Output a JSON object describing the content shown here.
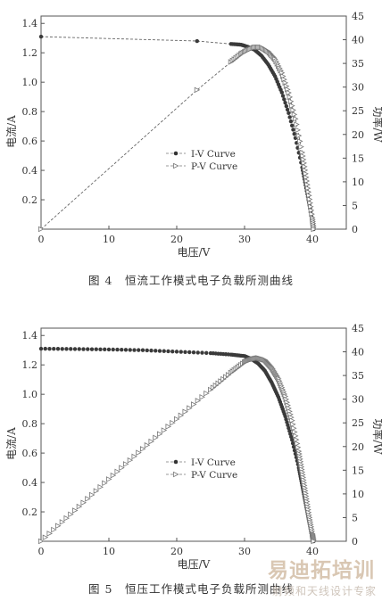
{
  "chart_data": [
    {
      "type": "line",
      "title": "",
      "xlabel": "电压/V",
      "ylabel": "电流/A",
      "ylabel_right": "功率/W",
      "xlim": [
        0,
        45
      ],
      "ylim": [
        0,
        1.45
      ],
      "ylim_right": [
        0,
        45
      ],
      "xticks": [
        0,
        10,
        20,
        30,
        40
      ],
      "yticks": [
        0.2,
        0.4,
        0.6,
        0.8,
        1.0,
        1.2,
        1.4
      ],
      "yticks_right": [
        0,
        5,
        10,
        15,
        20,
        25,
        30,
        35,
        40,
        45
      ],
      "legend": [
        "I-V Curve",
        "P-V Curve"
      ],
      "legend_position": "center-right",
      "grid": false,
      "series": [
        {
          "name": "I-V Curve",
          "axis": "left",
          "marker": "filled-dot",
          "line": "dashed",
          "x": [
            0,
            23,
            28,
            29.5,
            30.5,
            31.5,
            32.5,
            33.5,
            34.5,
            35.5,
            36.5,
            37.5,
            38.5,
            39,
            39.5,
            40,
            40.2
          ],
          "y": [
            1.31,
            1.28,
            1.26,
            1.255,
            1.24,
            1.22,
            1.18,
            1.12,
            1.04,
            0.93,
            0.79,
            0.62,
            0.42,
            0.3,
            0.18,
            0.06,
            0.0
          ]
        },
        {
          "name": "P-V Curve",
          "axis": "right",
          "marker": "open-triangle",
          "line": "dashed",
          "x": [
            0,
            23,
            28,
            29.5,
            30.5,
            31.5,
            32.5,
            33.5,
            34.5,
            35.5,
            36.5,
            37.5,
            38.5,
            39,
            39.5,
            40,
            40.2
          ],
          "y": [
            0,
            29.4,
            35.3,
            37.0,
            37.8,
            38.4,
            38.4,
            37.5,
            35.9,
            33.0,
            28.8,
            23.3,
            16.2,
            11.7,
            7.1,
            2.4,
            0
          ]
        }
      ],
      "caption": "图 4　恒流工作模式电子负载所测曲线"
    },
    {
      "type": "line",
      "title": "",
      "xlabel": "电压/V",
      "ylabel": "电流/A",
      "ylabel_right": "功率/W",
      "xlim": [
        0,
        45
      ],
      "ylim": [
        0,
        1.45
      ],
      "ylim_right": [
        0,
        45
      ],
      "xticks": [
        0,
        10,
        20,
        30,
        40
      ],
      "yticks": [
        0.2,
        0.4,
        0.6,
        0.8,
        1.0,
        1.2,
        1.4
      ],
      "yticks_right": [
        0,
        5,
        10,
        15,
        20,
        25,
        30,
        35,
        40,
        45
      ],
      "legend": [
        "I-V Curve",
        "P-V Curve"
      ],
      "legend_position": "center-right",
      "grid": false,
      "series": [
        {
          "name": "I-V Curve",
          "axis": "left",
          "marker": "filled-dot",
          "line": "none",
          "x": [
            0,
            5,
            10,
            15,
            20,
            25,
            28,
            30,
            31,
            32,
            33,
            34,
            35,
            36,
            37,
            38,
            38.5,
            39,
            39.5,
            40,
            40.2
          ],
          "y": [
            1.31,
            1.308,
            1.305,
            1.3,
            1.29,
            1.28,
            1.27,
            1.26,
            1.24,
            1.21,
            1.16,
            1.08,
            0.98,
            0.85,
            0.69,
            0.5,
            0.38,
            0.26,
            0.14,
            0.04,
            0.0
          ]
        },
        {
          "name": "P-V Curve",
          "axis": "right",
          "marker": "open-triangle",
          "line": "none",
          "x": [
            0,
            5,
            10,
            15,
            20,
            25,
            28,
            30,
            31,
            32,
            33,
            34,
            35,
            36,
            37,
            38,
            38.5,
            39,
            39.5,
            40,
            40.2
          ],
          "y": [
            0,
            6.5,
            13.1,
            19.5,
            25.8,
            32.0,
            35.6,
            37.8,
            38.4,
            38.7,
            38.3,
            36.7,
            34.3,
            30.6,
            25.5,
            19.0,
            14.6,
            10.1,
            5.5,
            1.6,
            0
          ]
        }
      ],
      "caption": "图 5　恒压工作模式电子负载所测曲线"
    }
  ],
  "watermark": {
    "main": "易迪拓培训",
    "sub": "射频和天线设计专家"
  }
}
